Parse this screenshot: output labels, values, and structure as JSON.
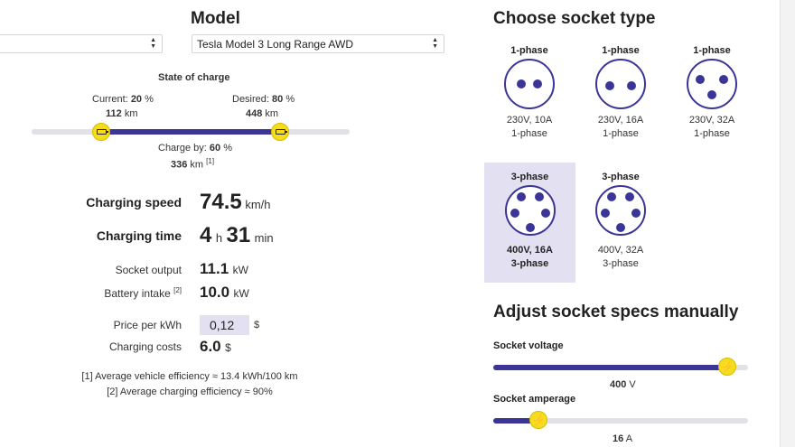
{
  "left": {
    "model_heading": "Model",
    "make_select": {
      "value": ""
    },
    "model_select": {
      "value": "Tesla Model 3 Long Range AWD"
    },
    "soc": {
      "title": "State of charge",
      "current_label": "Current:",
      "current_pct": "20",
      "current_pct_unit": "%",
      "current_km": "112",
      "current_km_unit": "km",
      "desired_label": "Desired:",
      "desired_pct": "80",
      "desired_pct_unit": "%",
      "desired_km": "448",
      "desired_km_unit": "km",
      "chargeby_label": "Charge by:",
      "chargeby_pct": "60",
      "chargeby_pct_unit": "%",
      "chargeby_km": "336",
      "chargeby_km_unit": "km",
      "chargeby_ref": "[1]",
      "current_fraction": 0.2,
      "desired_fraction": 0.8
    },
    "results": {
      "speed_label": "Charging speed",
      "speed_value": "74.5",
      "speed_unit": "km/h",
      "time_label": "Charging time",
      "time_h": "4",
      "time_h_unit": "h",
      "time_min": "31",
      "time_min_unit": "min",
      "output_label": "Socket output",
      "output_value": "11.1",
      "output_unit": "kW",
      "intake_label": "Battery intake",
      "intake_ref": "[2]",
      "intake_value": "10.0",
      "intake_unit": "kW",
      "price_label": "Price per kWh",
      "price_value": "0,12",
      "price_unit": "$",
      "cost_label": "Charging costs",
      "cost_value": "6.0",
      "cost_unit": "$"
    },
    "footnotes": [
      "[1] Average vehicle efficiency ≈ 13.4 kWh/100 km",
      "[2] Average charging efficiency ≈ 90%"
    ]
  },
  "right": {
    "socket_heading": "Choose socket type",
    "sockets": [
      {
        "phase": "1-phase",
        "spec1": "230V, 10A",
        "spec2": "1-phase",
        "selected": false,
        "pins": 2
      },
      {
        "phase": "1-phase",
        "spec1": "230V, 16A",
        "spec2": "1-phase",
        "selected": false,
        "pins": 2
      },
      {
        "phase": "1-phase",
        "spec1": "230V, 32A",
        "spec2": "1-phase",
        "selected": false,
        "pins": 3
      },
      {
        "phase": "3-phase",
        "spec1": "400V, 16A",
        "spec2": "3-phase",
        "selected": true,
        "pins": 5
      },
      {
        "phase": "3-phase",
        "spec1": "400V, 32A",
        "spec2": "3-phase",
        "selected": false,
        "pins": 5
      }
    ],
    "manual_heading": "Adjust socket specs manually",
    "voltage": {
      "label": "Socket voltage",
      "value": "400",
      "unit": "V",
      "fraction": 0.92
    },
    "amperage": {
      "label": "Socket amperage",
      "value": "16",
      "unit": "A",
      "fraction": 0.18
    }
  },
  "colors": {
    "accent": "#3a3596",
    "knob": "#f6dc1f",
    "highlight": "#e3e1f1"
  }
}
